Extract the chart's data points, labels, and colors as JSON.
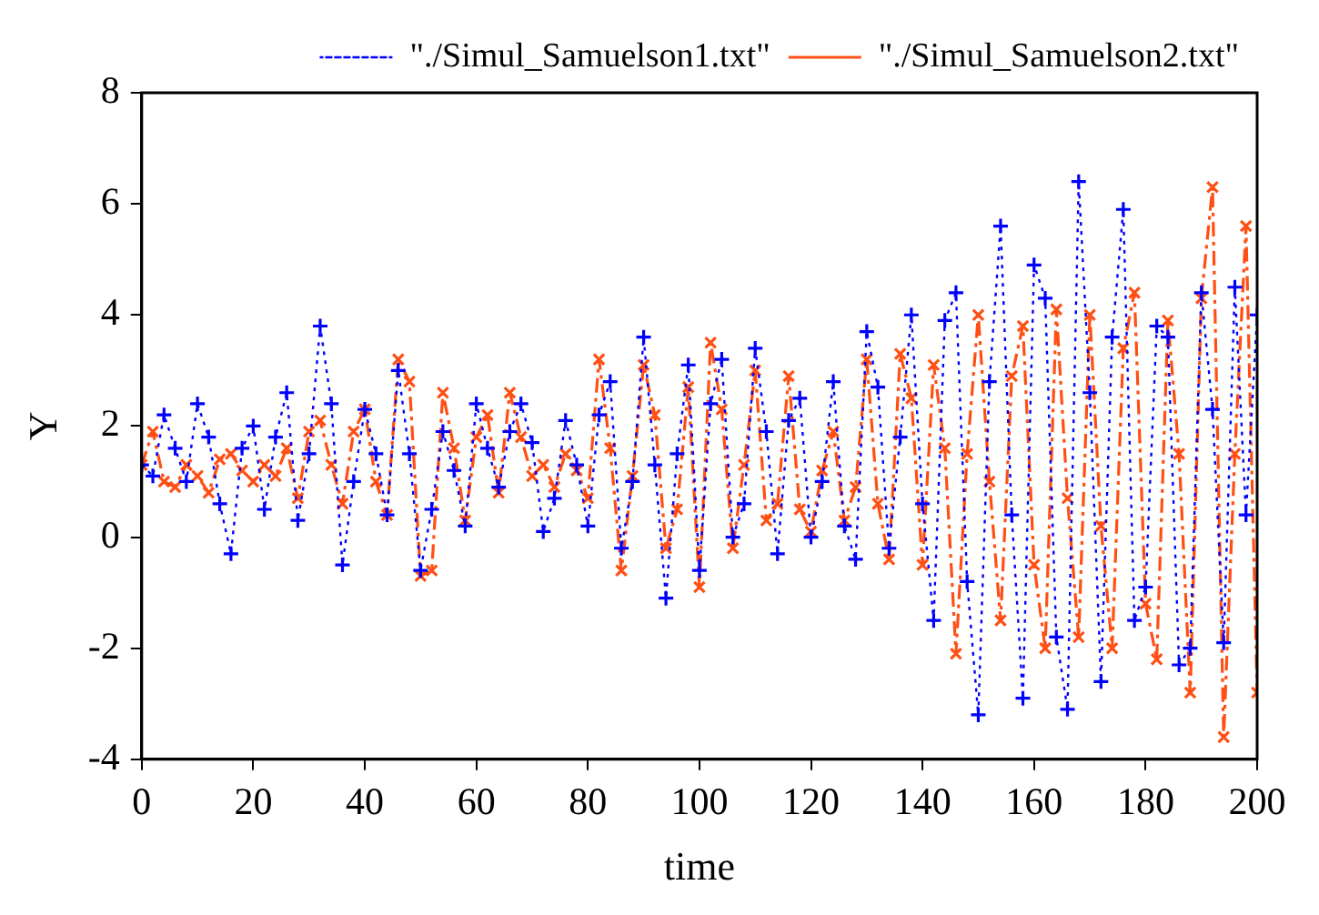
{
  "chart_data": {
    "type": "line",
    "xlabel": "time",
    "ylabel": "Y",
    "xlim": [
      0,
      200
    ],
    "xticks": [
      0,
      20,
      40,
      60,
      80,
      100,
      120,
      140,
      160,
      180,
      200
    ],
    "ylim": [
      -4,
      8
    ],
    "yticks": [
      -4,
      -2,
      0,
      2,
      4,
      6,
      8
    ],
    "grid": false,
    "legend": "top right",
    "x": [
      0,
      2,
      4,
      6,
      8,
      10,
      12,
      14,
      16,
      18,
      20,
      22,
      24,
      26,
      28,
      30,
      32,
      34,
      36,
      38,
      40,
      42,
      44,
      46,
      48,
      50,
      52,
      54,
      56,
      58,
      60,
      62,
      64,
      66,
      68,
      70,
      72,
      74,
      76,
      78,
      80,
      82,
      84,
      86,
      88,
      90,
      92,
      94,
      96,
      98,
      100,
      102,
      104,
      106,
      108,
      110,
      112,
      114,
      116,
      118,
      120,
      122,
      124,
      126,
      128,
      130,
      132,
      134,
      136,
      138,
      140,
      142,
      144,
      146,
      148,
      150,
      152,
      154,
      156,
      158,
      160,
      162,
      164,
      166,
      168,
      170,
      172,
      174,
      176,
      178,
      180,
      182,
      184,
      186,
      188,
      190,
      192,
      194,
      196,
      198,
      200
    ],
    "series": [
      {
        "name": "\"./Simul_Samuelson1.txt\"",
        "color": "#0000ff",
        "marker": "cross",
        "line_style": "dotted",
        "values": [
          1.3,
          1.1,
          2.2,
          1.6,
          1.0,
          2.4,
          1.8,
          0.6,
          -0.3,
          1.6,
          2.0,
          0.5,
          1.8,
          2.6,
          0.3,
          1.5,
          3.8,
          2.4,
          -0.5,
          1.0,
          2.3,
          1.5,
          0.4,
          3.0,
          1.5,
          -0.6,
          0.5,
          1.9,
          1.2,
          0.2,
          2.4,
          1.6,
          0.9,
          1.9,
          2.4,
          1.7,
          0.1,
          0.7,
          2.1,
          1.3,
          0.2,
          2.2,
          2.8,
          -0.2,
          1.0,
          3.6,
          1.3,
          -1.1,
          1.5,
          3.1,
          -0.6,
          2.4,
          3.2,
          0.0,
          0.6,
          3.4,
          1.9,
          -0.3,
          2.1,
          2.5,
          0.0,
          1.0,
          2.8,
          0.2,
          -0.4,
          3.7,
          2.7,
          -0.2,
          1.8,
          4.0,
          0.6,
          -1.5,
          3.9,
          4.4,
          -0.8,
          -3.2,
          2.8,
          5.6,
          0.4,
          -2.9,
          4.9,
          4.3,
          -1.8,
          -3.1,
          6.4,
          2.6,
          -2.6,
          3.6,
          5.9,
          -1.5,
          -0.9,
          3.8,
          3.6,
          -2.3,
          -2.0,
          4.4,
          2.3,
          -1.9,
          4.5,
          0.4,
          4.0
        ]
      },
      {
        "name": "\"./Simul_Samuelson2.txt\"",
        "color": "#ff4f14",
        "marker": "x",
        "line_style": "dashed",
        "values": [
          1.3,
          1.9,
          1.0,
          0.9,
          1.3,
          1.1,
          0.8,
          1.4,
          1.5,
          1.2,
          1.0,
          1.3,
          1.1,
          1.6,
          0.7,
          1.9,
          2.1,
          1.3,
          0.6,
          1.9,
          2.3,
          1.0,
          0.4,
          3.2,
          2.8,
          -0.7,
          -0.6,
          2.6,
          1.6,
          0.3,
          1.8,
          2.2,
          0.8,
          2.6,
          1.8,
          1.1,
          1.3,
          0.9,
          1.5,
          1.2,
          0.7,
          3.2,
          1.6,
          -0.6,
          1.1,
          3.1,
          2.2,
          -0.2,
          0.5,
          2.7,
          -0.9,
          3.5,
          2.3,
          -0.2,
          1.3,
          3.0,
          0.3,
          0.6,
          2.9,
          0.5,
          0.1,
          1.2,
          1.9,
          0.3,
          0.9,
          3.2,
          0.6,
          -0.4,
          3.3,
          2.5,
          -0.5,
          3.1,
          1.6,
          -2.1,
          1.5,
          4.0,
          1.0,
          -1.5,
          2.9,
          3.8,
          -0.5,
          -2.0,
          4.1,
          0.7,
          -1.8,
          4.0,
          0.2,
          -2.0,
          3.4,
          4.4,
          -1.2,
          -2.2,
          3.9,
          1.5,
          -2.8,
          4.3,
          6.3,
          -3.6,
          1.5,
          5.6,
          -2.8
        ]
      }
    ]
  }
}
